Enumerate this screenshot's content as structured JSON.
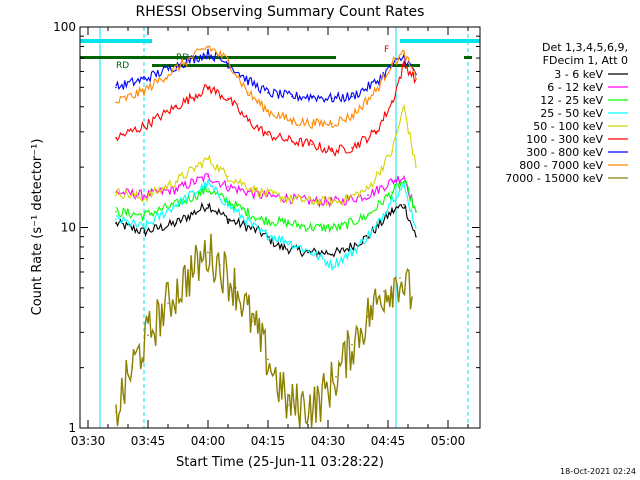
{
  "chart_data": {
    "type": "line",
    "title": "RHESSI Observing Summary Count Rates",
    "xlabel": "Start Time (25-Jun-11 03:28:22)",
    "ylabel": "Count Rate (s⁻¹ detector⁻¹)",
    "y_scale": "log",
    "ylim": [
      1,
      100
    ],
    "xlim": [
      "03:28",
      "05:08"
    ],
    "x_ticks": [
      "03:30",
      "03:45",
      "04:00",
      "04:15",
      "04:30",
      "04:45",
      "05:00"
    ],
    "y_ticks": [
      "1",
      "10",
      "100"
    ],
    "timestamp": "18-Oct-2021 02:24",
    "legend_header": [
      "Det 1,3,4,5,6,9,",
      "FDecim 1, Att 0"
    ],
    "flags": [
      "RD",
      "RD",
      "F"
    ],
    "series": [
      {
        "name": "3 - 6 keV",
        "color": "#000000",
        "points": [
          [
            "03:37",
            10.5
          ],
          [
            "03:44",
            9.5
          ],
          [
            "03:52",
            10.5
          ],
          [
            "04:00",
            13
          ],
          [
            "04:05",
            11
          ],
          [
            "04:13",
            9.5
          ],
          [
            "04:18",
            8.0
          ],
          [
            "04:25",
            7.5
          ],
          [
            "04:33",
            7.5
          ],
          [
            "04:40",
            9
          ],
          [
            "04:46",
            12
          ],
          [
            "04:49",
            13
          ],
          [
            "04:52",
            9
          ]
        ]
      },
      {
        "name": "6 - 12 keV",
        "color": "#ff00ff",
        "points": [
          [
            "03:37",
            15
          ],
          [
            "03:44",
            14.5
          ],
          [
            "03:52",
            15.5
          ],
          [
            "04:00",
            18
          ],
          [
            "04:05",
            16
          ],
          [
            "04:13",
            14.5
          ],
          [
            "04:20",
            14
          ],
          [
            "04:26",
            13.5
          ],
          [
            "04:33",
            13.5
          ],
          [
            "04:40",
            14.5
          ],
          [
            "04:46",
            17
          ],
          [
            "04:49",
            18
          ],
          [
            "04:52",
            12
          ]
        ]
      },
      {
        "name": "12 - 25 keV",
        "color": "#00ff00",
        "points": [
          [
            "03:37",
            12
          ],
          [
            "03:44",
            11.5
          ],
          [
            "03:52",
            13
          ],
          [
            "04:00",
            15.5
          ],
          [
            "04:05",
            13.5
          ],
          [
            "04:13",
            11
          ],
          [
            "04:20",
            10.5
          ],
          [
            "04:26",
            10
          ],
          [
            "04:33",
            10
          ],
          [
            "04:40",
            11.5
          ],
          [
            "04:46",
            15
          ],
          [
            "04:49",
            17
          ],
          [
            "04:52",
            12
          ]
        ]
      },
      {
        "name": "25 - 50 keV",
        "color": "#00ffff",
        "points": [
          [
            "03:37",
            11
          ],
          [
            "03:44",
            10
          ],
          [
            "03:52",
            13
          ],
          [
            "04:00",
            16.5
          ],
          [
            "04:05",
            13
          ],
          [
            "04:13",
            9.5
          ],
          [
            "04:20",
            8.5
          ],
          [
            "04:26",
            7.5
          ],
          [
            "04:31",
            6.5
          ],
          [
            "04:36",
            7.5
          ],
          [
            "04:42",
            10
          ],
          [
            "04:46",
            14
          ],
          [
            "04:49",
            16
          ],
          [
            "04:52",
            10
          ]
        ]
      },
      {
        "name": "50 - 100 keV",
        "color": "#d4d400",
        "points": [
          [
            "03:37",
            15
          ],
          [
            "03:44",
            14
          ],
          [
            "03:52",
            17
          ],
          [
            "04:00",
            22
          ],
          [
            "04:05",
            18
          ],
          [
            "04:13",
            15
          ],
          [
            "04:20",
            14
          ],
          [
            "04:26",
            13.5
          ],
          [
            "04:33",
            13.5
          ],
          [
            "04:40",
            15.5
          ],
          [
            "04:46",
            24
          ],
          [
            "04:49",
            40
          ],
          [
            "04:52",
            20
          ]
        ]
      },
      {
        "name": "100 - 300 keV",
        "color": "#ff0000",
        "points": [
          [
            "03:37",
            28
          ],
          [
            "03:44",
            32
          ],
          [
            "03:52",
            40
          ],
          [
            "04:00",
            50
          ],
          [
            "04:05",
            44
          ],
          [
            "04:10",
            34
          ],
          [
            "04:15",
            29
          ],
          [
            "04:21",
            27
          ],
          [
            "04:26",
            26
          ],
          [
            "04:31",
            24
          ],
          [
            "04:36",
            25
          ],
          [
            "04:42",
            30
          ],
          [
            "04:46",
            42
          ],
          [
            "04:49",
            65
          ],
          [
            "04:52",
            55
          ]
        ]
      },
      {
        "name": "300 - 800 keV",
        "color": "#0000ff",
        "points": [
          [
            "03:37",
            50
          ],
          [
            "03:44",
            55
          ],
          [
            "03:52",
            64
          ],
          [
            "04:00",
            74
          ],
          [
            "04:05",
            66
          ],
          [
            "04:10",
            54
          ],
          [
            "04:15",
            47
          ],
          [
            "04:21",
            45
          ],
          [
            "04:26",
            45
          ],
          [
            "04:31",
            44
          ],
          [
            "04:36",
            45
          ],
          [
            "04:42",
            53
          ],
          [
            "04:46",
            64
          ],
          [
            "04:49",
            71
          ],
          [
            "04:52",
            58
          ]
        ]
      },
      {
        "name": "800 - 7000 keV",
        "color": "#ff8800",
        "points": [
          [
            "03:37",
            42
          ],
          [
            "03:44",
            48
          ],
          [
            "03:52",
            62
          ],
          [
            "04:00",
            80
          ],
          [
            "04:05",
            68
          ],
          [
            "04:10",
            47
          ],
          [
            "04:15",
            38
          ],
          [
            "04:21",
            34
          ],
          [
            "04:26",
            33
          ],
          [
            "04:31",
            33
          ],
          [
            "04:36",
            36
          ],
          [
            "04:42",
            48
          ],
          [
            "04:46",
            66
          ],
          [
            "04:49",
            74
          ],
          [
            "04:52",
            55
          ]
        ]
      },
      {
        "name": "7000 - 15000 keV",
        "color": "#8b8000",
        "points": [
          [
            "03:37",
            1.2
          ],
          [
            "03:41",
            2.0
          ],
          [
            "03:45",
            2.9
          ],
          [
            "03:50",
            4.2
          ],
          [
            "03:55",
            5.7
          ],
          [
            "04:00",
            7.5
          ],
          [
            "04:03",
            6.5
          ],
          [
            "04:07",
            5.0
          ],
          [
            "04:11",
            3.4
          ],
          [
            "04:15",
            2.2
          ],
          [
            "04:20",
            1.3
          ],
          [
            "04:27",
            1.3
          ],
          [
            "04:32",
            1.8
          ],
          [
            "04:36",
            2.6
          ],
          [
            "04:40",
            3.6
          ],
          [
            "04:44",
            4.8
          ],
          [
            "04:48",
            5.6
          ],
          [
            "04:51",
            4.5
          ]
        ]
      }
    ]
  }
}
